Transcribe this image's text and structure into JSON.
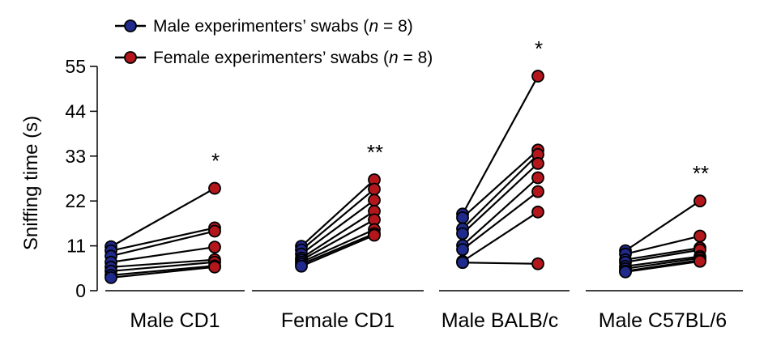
{
  "chart_data": {
    "type": "scatter",
    "subtype": "paired-dot (before-after) plot",
    "ylabel": "Sniffing time (s)",
    "ylim": [
      0,
      55
    ],
    "yticks": [
      "0",
      "11",
      "22",
      "33",
      "44",
      "55"
    ],
    "grid": false,
    "legend_position": "top-left",
    "legend": [
      {
        "key": "male",
        "label_main": "Male experimenters’ swabs (",
        "label_italic": "n",
        "label_tail": " = 8)",
        "color": "#1f2a8c"
      },
      {
        "key": "female",
        "label_main": "Female experimenters’ swabs (",
        "label_italic": "n",
        "label_tail": " = 8)",
        "color": "#b3171c"
      }
    ],
    "groups": [
      {
        "label": "Male CD1",
        "significance": "*",
        "pairs": [
          [
            10.8,
            25.1
          ],
          [
            9.8,
            15.4
          ],
          [
            8.5,
            14.6
          ],
          [
            7.0,
            10.7
          ],
          [
            5.8,
            7.6
          ],
          [
            4.8,
            7.0
          ],
          [
            3.8,
            6.1
          ],
          [
            3.2,
            5.8
          ]
        ]
      },
      {
        "label": "Female CD1",
        "significance": "**",
        "pairs": [
          [
            10.9,
            27.2
          ],
          [
            10.0,
            24.9
          ],
          [
            9.0,
            22.2
          ],
          [
            8.0,
            19.5
          ],
          [
            7.5,
            17.4
          ],
          [
            7.0,
            15.0
          ],
          [
            6.5,
            14.0
          ],
          [
            6.0,
            13.6
          ]
        ]
      },
      {
        "label": "Male BALB/c",
        "significance": "*",
        "pairs": [
          [
            18.8,
            52.6
          ],
          [
            17.9,
            34.5
          ],
          [
            15.2,
            33.4
          ],
          [
            14.0,
            31.2
          ],
          [
            11.1,
            27.7
          ],
          [
            10.1,
            24.3
          ],
          [
            7.2,
            19.3
          ],
          [
            6.9,
            6.6
          ]
        ]
      },
      {
        "label": "Male C57BL/6",
        "significance": "**",
        "pairs": [
          [
            9.8,
            22.0
          ],
          [
            9.0,
            13.4
          ],
          [
            7.6,
            10.5
          ],
          [
            7.0,
            10.0
          ],
          [
            6.0,
            8.4
          ],
          [
            5.4,
            8.0
          ],
          [
            4.8,
            7.5
          ],
          [
            4.6,
            7.2
          ]
        ]
      }
    ]
  }
}
